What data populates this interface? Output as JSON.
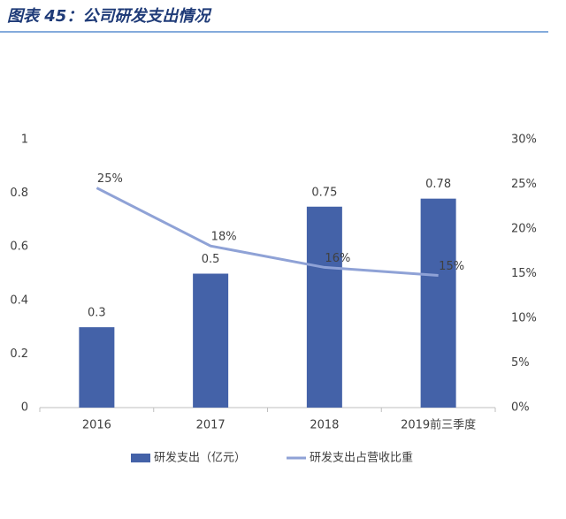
{
  "chart_data": {
    "type": "combo",
    "title": "图表 45：公司研发支出情况",
    "categories": [
      "2016",
      "2017",
      "2018",
      "2019前三季度"
    ],
    "ylim": [
      0,
      1
    ],
    "yticks": [
      0,
      0.2,
      0.4,
      0.6,
      0.8,
      1
    ],
    "y2lim": [
      0,
      30
    ],
    "y2ticks": [
      {
        "value": 0,
        "label": "0%"
      },
      {
        "value": 5,
        "label": "5%"
      },
      {
        "value": 10,
        "label": "10%"
      },
      {
        "value": 15,
        "label": "15%"
      },
      {
        "value": 20,
        "label": "20%"
      },
      {
        "value": 25,
        "label": "25%"
      },
      {
        "value": 30,
        "label": "30%"
      }
    ],
    "grid": false,
    "legend": "bottom",
    "series": [
      {
        "name": "研发支出（亿元）",
        "type": "bar",
        "color": "#4462a8",
        "values": [
          0.3,
          0.5,
          0.75,
          0.78
        ]
      },
      {
        "name": "研发支出占营收比重",
        "type": "line",
        "axis": "y2",
        "color": "#8fa2d6",
        "values": [
          24.6,
          18.1,
          15.7,
          14.8
        ],
        "value_labels": [
          "25%",
          "18%",
          "16%",
          "15%"
        ]
      }
    ]
  }
}
